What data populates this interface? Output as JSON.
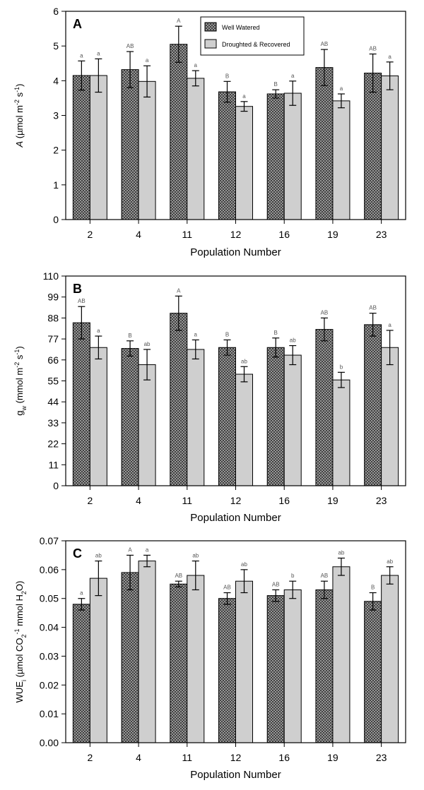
{
  "colors": {
    "well_watered_fill": "#3a3a3a",
    "droughted_fill": "#cfcfcf",
    "axis": "#000000"
  },
  "legend": {
    "items": [
      {
        "label": "Well Watered",
        "pattern": "crosshatch"
      },
      {
        "label": "Droughted & Recovered",
        "pattern": "solid-light-gray"
      }
    ]
  },
  "chart_data": [
    {
      "type": "bar",
      "panel": "A",
      "categories": [
        "2",
        "4",
        "11",
        "12",
        "16",
        "19",
        "23"
      ],
      "xlabel": "Population Number",
      "ylabel": {
        "pre": "",
        "italic": "A",
        "post": " (µmol m",
        "sup1": "-2",
        "mid": " s",
        "sup2": "-1",
        "end": ")"
      },
      "ylim": [
        0,
        6
      ],
      "yticks": [
        "0",
        "1",
        "2",
        "3",
        "4",
        "5",
        "6"
      ],
      "legend_position": "top-right",
      "series": [
        {
          "name": "Well Watered",
          "values": [
            4.15,
            4.32,
            5.05,
            3.68,
            3.62,
            4.38,
            4.22
          ],
          "errors": [
            0.42,
            0.52,
            0.52,
            0.3,
            0.12,
            0.52,
            0.55
          ],
          "letters": [
            "a",
            "AB",
            "A",
            "B",
            "B",
            "AB",
            "AB"
          ]
        },
        {
          "name": "Droughted & Recovered",
          "values": [
            4.15,
            3.98,
            4.07,
            3.26,
            3.64,
            3.42,
            4.14
          ],
          "errors": [
            0.48,
            0.45,
            0.22,
            0.14,
            0.35,
            0.2,
            0.4
          ],
          "letters": [
            "a",
            "a",
            "a",
            "a",
            "a",
            "a",
            "a"
          ]
        }
      ]
    },
    {
      "type": "bar",
      "panel": "B",
      "categories": [
        "2",
        "4",
        "11",
        "12",
        "16",
        "19",
        "23"
      ],
      "xlabel": "Population Number",
      "ylabel": {
        "pre": "g",
        "sub": "w",
        "post": " (mmol m",
        "sup1": "-2",
        "mid": " s",
        "sup2": "-1",
        "end": ")"
      },
      "ylim": [
        0,
        110
      ],
      "yticks": [
        "0",
        "11",
        "22",
        "33",
        "44",
        "55",
        "66",
        "77",
        "88",
        "99",
        "110"
      ],
      "series": [
        {
          "name": "Well Watered",
          "values": [
            85.5,
            72.0,
            90.5,
            72.5,
            72.5,
            82.0,
            84.5
          ],
          "errors": [
            8.5,
            4.0,
            9.0,
            4.0,
            5.0,
            6.0,
            6.0
          ],
          "letters": [
            "AB",
            "B",
            "A",
            "B",
            "B",
            "AB",
            "AB"
          ]
        },
        {
          "name": "Droughted & Recovered",
          "values": [
            72.5,
            63.5,
            71.5,
            58.5,
            68.5,
            55.5,
            72.5
          ],
          "errors": [
            6.0,
            8.0,
            5.0,
            4.0,
            5.0,
            4.0,
            9.0
          ],
          "letters": [
            "a",
            "ab",
            "a",
            "ab",
            "ab",
            "b",
            "a"
          ]
        }
      ]
    },
    {
      "type": "bar",
      "panel": "C",
      "categories": [
        "2",
        "4",
        "11",
        "12",
        "16",
        "19",
        "23"
      ],
      "xlabel": "Population Number",
      "ylabel": {
        "pre": "WUE",
        "sub": "i",
        "post": " (µmol CO",
        "sub2": "2",
        "mid": " mmol",
        "sup1": "-1",
        "end": " H",
        "sub3": "2",
        "end2": "O)"
      },
      "ylim": [
        0,
        0.07
      ],
      "yticks": [
        "0.00",
        "0.01",
        "0.02",
        "0.03",
        "0.04",
        "0.05",
        "0.06",
        "0.07"
      ],
      "series": [
        {
          "name": "Well Watered",
          "values": [
            0.048,
            0.059,
            0.055,
            0.05,
            0.051,
            0.053,
            0.049
          ],
          "errors": [
            0.002,
            0.006,
            0.001,
            0.002,
            0.002,
            0.003,
            0.003
          ],
          "letters": [
            "a",
            "A",
            "AB",
            "AB",
            "AB",
            "AB",
            "B"
          ]
        },
        {
          "name": "Droughted & Recovered",
          "values": [
            0.057,
            0.063,
            0.058,
            0.056,
            0.053,
            0.061,
            0.058
          ],
          "errors": [
            0.006,
            0.002,
            0.005,
            0.004,
            0.003,
            0.003,
            0.003
          ],
          "letters": [
            "ab",
            "a",
            "ab",
            "ab",
            "b",
            "ab",
            "ab"
          ]
        }
      ]
    }
  ]
}
